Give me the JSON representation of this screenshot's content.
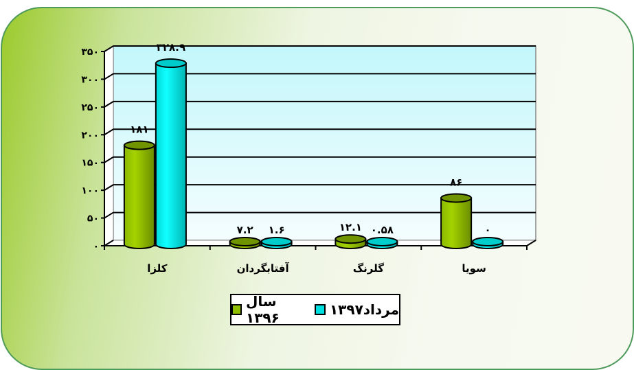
{
  "chart_data": {
    "type": "bar",
    "categories": [
      "کلزا",
      "آفتابگردان",
      "گلرنگ",
      "سویا"
    ],
    "series": [
      {
        "name": "سال ۱۳۹۶",
        "color": "#8fbf00",
        "values": [
          181,
          7.2,
          12.1,
          86
        ],
        "labels": [
          "۱۸۱",
          "۷.۲",
          "۱۲.۱",
          "۸۶"
        ]
      },
      {
        "name": "مرداد۱۳۹۷",
        "color": "#00e0e0",
        "values": [
          328.9,
          1.6,
          0.58,
          0
        ],
        "labels": [
          "۳۲۸.۹",
          "۱.۶",
          "۰.۵۸",
          "۰"
        ]
      }
    ],
    "ylim": [
      0,
      350
    ],
    "yticks": [
      0,
      50,
      100,
      150,
      200,
      250,
      300,
      350
    ],
    "ytick_labels": [
      "۰",
      "۵۰",
      "۱۰۰",
      "۱۵۰",
      "۲۰۰",
      "۲۵۰",
      "۳۰۰",
      "۳۵۰"
    ],
    "grid": true,
    "legend": "bottom",
    "style": "3d-cylinder",
    "plot_background": "#c8f8fc"
  }
}
